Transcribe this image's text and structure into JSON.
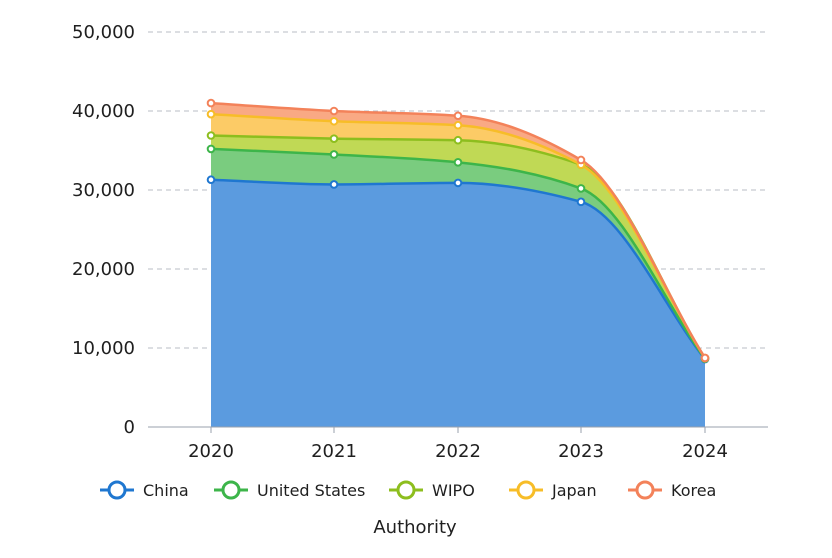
{
  "chart_data": {
    "type": "area",
    "stacked": true,
    "categories": [
      "2020",
      "2021",
      "2022",
      "2023",
      "2024"
    ],
    "ylim": [
      0,
      50000
    ],
    "yticks": [
      "0",
      "10,000",
      "20,000",
      "30,000",
      "40,000",
      "50,000"
    ],
    "ytick_values": [
      0,
      10000,
      20000,
      30000,
      40000,
      50000
    ],
    "xlabel": "Authority",
    "ylabel": "",
    "grid": "horizontal dashed",
    "legend_position": "bottom",
    "series": [
      {
        "name": "China",
        "values": [
          31300,
          30700,
          30900,
          28500,
          8600
        ],
        "color": "#1F77D0",
        "fill": "#5B9BDF"
      },
      {
        "name": "United States",
        "values": [
          3900,
          3800,
          2600,
          1700,
          60
        ],
        "color": "#3DB54A",
        "fill": "#7ACC7F"
      },
      {
        "name": "WIPO",
        "values": [
          1700,
          2000,
          2800,
          3000,
          50
        ],
        "color": "#8DBE1E",
        "fill": "#C0D955"
      },
      {
        "name": "Japan",
        "values": [
          2700,
          2200,
          1900,
          0,
          20
        ],
        "color": "#F7BD28",
        "fill": "#FCCB66"
      },
      {
        "name": "Korea",
        "values": [
          1400,
          1300,
          1200,
          600,
          10
        ],
        "color": "#F3825A",
        "fill": "#F9A984"
      }
    ]
  }
}
